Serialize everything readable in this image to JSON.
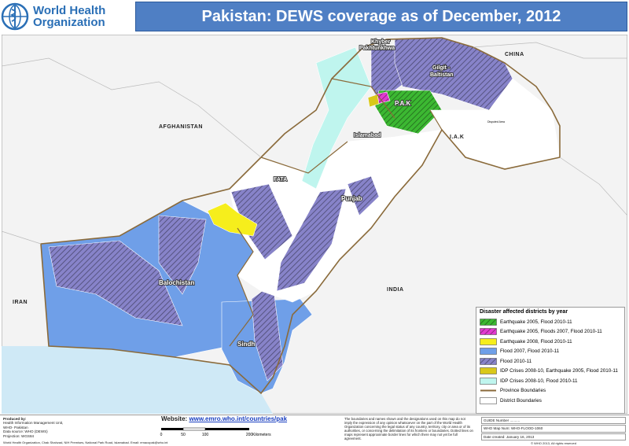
{
  "header": {
    "org_name_lines": [
      "World Health",
      "Organization"
    ],
    "title": "Pakistan: DEWS coverage as of December, 2012"
  },
  "map": {
    "labels": {
      "china": "CHINA",
      "afghanistan": "AFGHANISTAN",
      "iran": "IRAN",
      "india": "INDIA",
      "kp_lines": [
        "Khyber",
        "Pakhtunkhwa"
      ],
      "gb_lines": [
        "Gilgit -",
        "Baltistan"
      ],
      "pak": "P.A.K",
      "iak": "I.A.K",
      "islamabad": "Islamabad",
      "fata": "FATA",
      "punjab": "Punjab",
      "balochistan": "Balochistan",
      "sindh": "Sindh",
      "disputed": "Disputed Area"
    }
  },
  "legend": {
    "title": "Disaster affected districts by year",
    "items": [
      {
        "label": "Earthquake 2005, Flood 2010-11",
        "color": "#3cb832",
        "hatch": true
      },
      {
        "label": "Earthquake 2005, Floods 2007, Flood 2010-11",
        "color": "#e23ad0",
        "hatch": true
      },
      {
        "label": "Earthquake 2008, Flood 2010-11",
        "color": "#f6ee1c",
        "hatch": false
      },
      {
        "label": "Flood 2007, Flood 2010-11",
        "color": "#6f9fe8",
        "hatch": false
      },
      {
        "label": "Flood 2010-11",
        "color": "#8783c9",
        "hatch": true
      },
      {
        "label": "IDP Crises 2008-10, Earthquake 2005, Flood 2010-11",
        "color": "#d9c81a",
        "hatch": false
      },
      {
        "label": "IDP Crises 2008-10, Flood 2010-11",
        "color": "#bff5ee",
        "hatch": false
      },
      {
        "label": "Province Boundaries",
        "color": "#8a6a3a",
        "hatch": false
      },
      {
        "label": "District Boundaries",
        "color": "#ffffff",
        "hatch": false
      }
    ]
  },
  "footer": {
    "produced_lines": [
      "Produced by:",
      "Health Information Management Unit,",
      "WHO- Pakistan",
      "Data source: WHO (DEWS)",
      "Projection: WGS84"
    ],
    "website_label": "Website:",
    "website_url": "www.emro.who.int/countries/pak",
    "scale_ticks": [
      "0",
      "50",
      "100",
      "200"
    ],
    "scale_unit": "Kilometers",
    "disclaimer": "The boundaries and names shown and the designations used on this map do not imply the expression of any opinion whatsoever on the part of the World Health Organization concerning the legal status of any country, territory, city or area or of its authorities, or concerning the delimitation of its frontiers or boundaries. Dotted lines on maps represent approximate border lines for which there may not yet be full agreement.",
    "guide_number": "GUIDE Number ..........",
    "map_number": "WHO Map Num: WHO-FLOOD-1060",
    "date_created": "Date created: January 16, 2013",
    "copyright": "© WHO 2013, All rights reserved",
    "address": "World Health Organization, Chak Shahzad, NIH Premises, National Park Road, Islamabad. Email: emacopak@who.int"
  }
}
